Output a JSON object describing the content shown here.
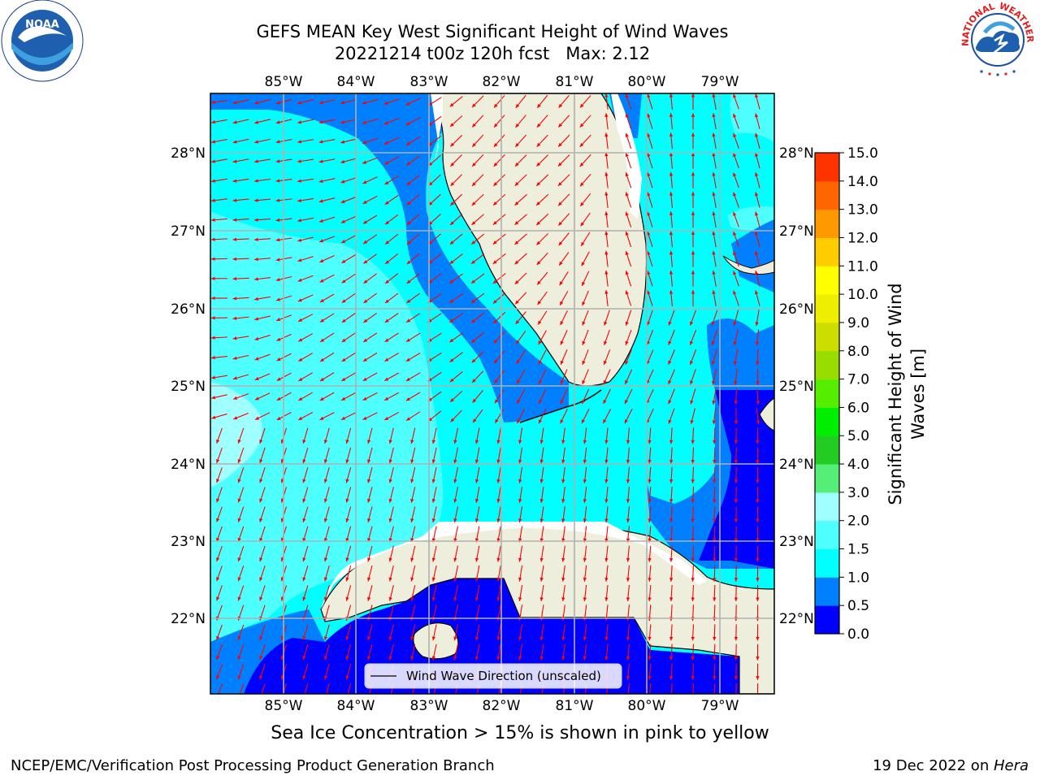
{
  "title": {
    "line1": "GEFS MEAN Key West Significant Height of Wind Waves",
    "line2": "20221214 t00z 120h fcst   Max: 2.12"
  },
  "map": {
    "lon_ticks": [
      "85°W",
      "84°W",
      "83°W",
      "82°W",
      "81°W",
      "80°W",
      "79°W"
    ],
    "lat_ticks": [
      "28°N",
      "27°N",
      "26°N",
      "25°N",
      "24°N",
      "23°N",
      "22°N"
    ],
    "legend_label": "Wind Wave Direction (unscaled)",
    "colors": {
      "land": "#eeeedd",
      "band_0_0_5": "#0000ff",
      "band_0_5_1": "#0080ff",
      "band_1_1_5": "#00ffff",
      "band_1_5_2": "#4dffff",
      "band_2_3": "#a0ffff",
      "arrow": "#ff0000"
    }
  },
  "colorbar": {
    "label_line1": "Significant Height of Wind",
    "label_line2": "Waves [m]",
    "ticks": [
      "0.0",
      "0.5",
      "1.0",
      "1.5",
      "2.0",
      "3.0",
      "4.0",
      "5.0",
      "6.0",
      "7.0",
      "8.0",
      "9.0",
      "10.0",
      "11.0",
      "12.0",
      "13.0",
      "14.0",
      "15.0"
    ],
    "colors": [
      "#0000ff",
      "#0080ff",
      "#00ffff",
      "#4dffff",
      "#a0ffff",
      "#55ee77",
      "#22cc22",
      "#00ee00",
      "#55ee00",
      "#99dd00",
      "#ccdd00",
      "#eeee00",
      "#ffff00",
      "#ffcc00",
      "#ff9900",
      "#ff6600",
      "#ff3300"
    ]
  },
  "logos": {
    "noaa": "NOAA",
    "nws_text": "NATIONAL WEATHER SERVICE"
  },
  "caption": "Sea Ice Concentration > 15% is shown in pink to yellow",
  "footer": {
    "left": "NCEP/EMC/Verification Post Processing Product Generation Branch",
    "right_date": "19 Dec 2022 on ",
    "right_machine": "Hera"
  }
}
